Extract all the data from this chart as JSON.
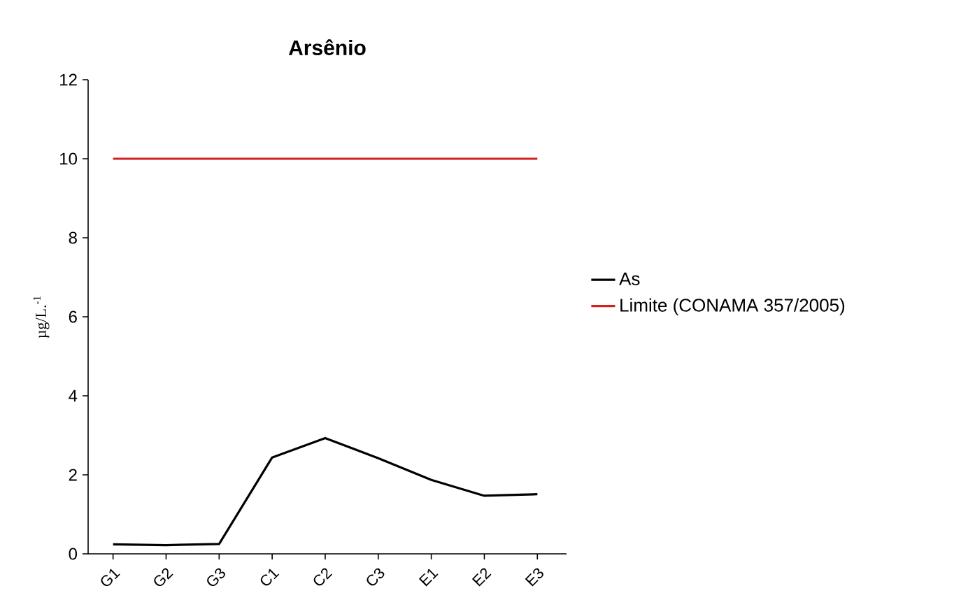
{
  "chart_data": {
    "type": "line",
    "title": "Arsênio",
    "ylabel": "µg/L.$^{-1}$",
    "categories": [
      "G1",
      "G2",
      "G3",
      "C1",
      "C2",
      "C3",
      "E1",
      "E2",
      "E3"
    ],
    "series": [
      {
        "name": "As",
        "color": "#000000",
        "values": [
          0.24,
          0.22,
          0.25,
          2.44,
          2.93,
          2.42,
          1.87,
          1.47,
          1.51
        ]
      },
      {
        "name": "Limite (CONAMA 357/2005)",
        "color": "#d42020",
        "values": [
          10,
          10,
          10,
          10,
          10,
          10,
          10,
          10,
          10
        ]
      }
    ],
    "ylim": [
      0,
      12
    ],
    "yticks": [
      0,
      2,
      4,
      6,
      8,
      10,
      12
    ],
    "legend": "right"
  }
}
